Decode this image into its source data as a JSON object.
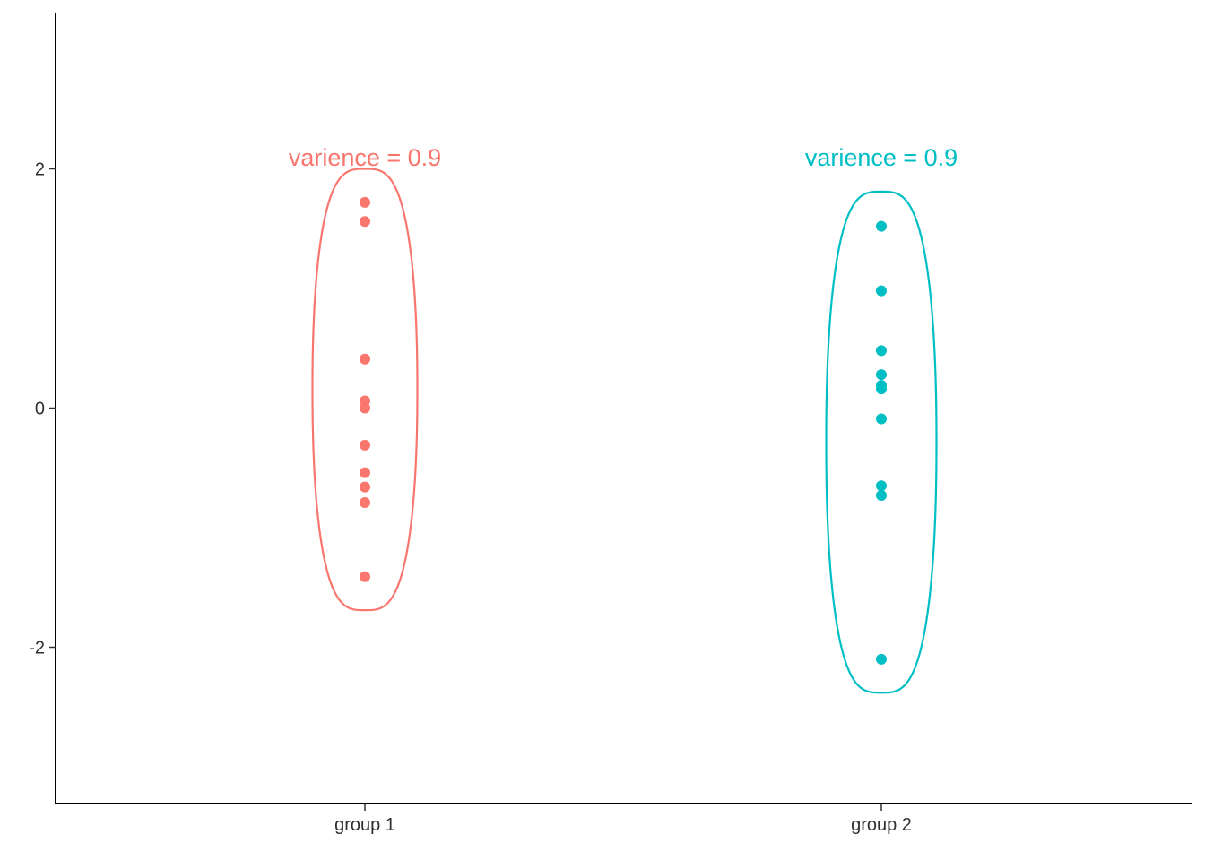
{
  "chart_data": {
    "type": "scatter",
    "title": "",
    "xlabel": "",
    "ylabel": "",
    "categories": [
      "group 1",
      "group 2"
    ],
    "ylim": [
      -3.3,
      3.3
    ],
    "y_ticks": [
      -2,
      0,
      2
    ],
    "y_tick_labels": [
      "-2",
      "0",
      "2"
    ],
    "grid": false,
    "legend": "none",
    "series": [
      {
        "category": "group 1",
        "color": "#F8766D",
        "values": [
          1.72,
          1.56,
          0.41,
          0.06,
          0.0,
          -0.31,
          -0.54,
          -0.66,
          -0.79,
          -1.41
        ],
        "annotation": "varience = 0.9",
        "ellipse_range": [
          -1.69,
          2.0
        ]
      },
      {
        "category": "group 2",
        "color": "#00BFC4",
        "values": [
          1.52,
          0.98,
          0.48,
          0.28,
          0.19,
          0.16,
          -0.09,
          -0.65,
          -0.73,
          -2.1
        ],
        "annotation": "varience = 0.9",
        "ellipse_range": [
          -2.38,
          1.81
        ]
      }
    ]
  }
}
